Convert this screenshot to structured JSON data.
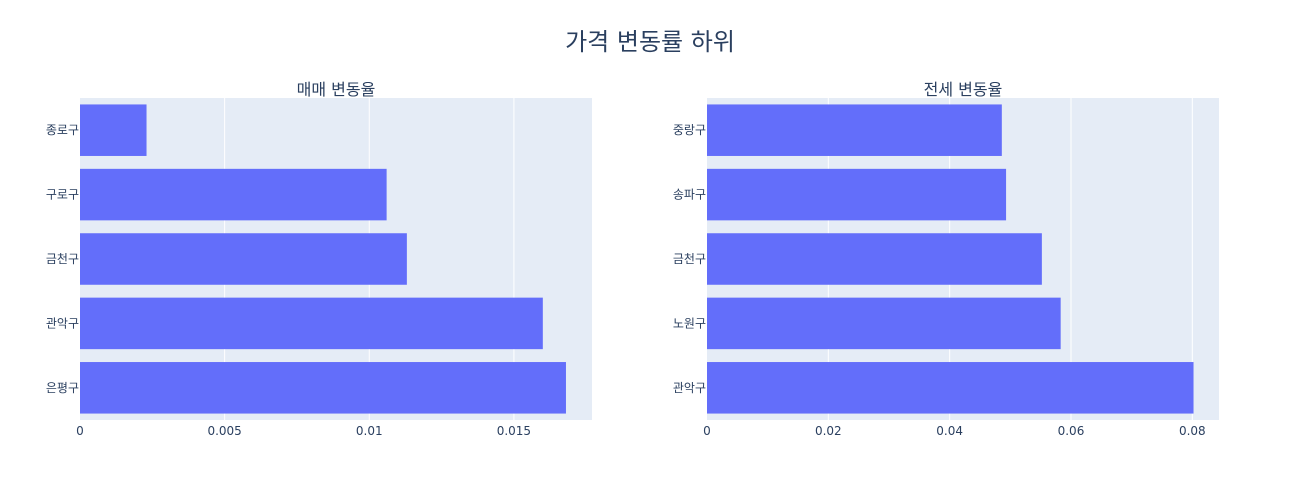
{
  "title": "가격 변동률 하위",
  "chart_data": [
    {
      "type": "bar",
      "orientation": "horizontal",
      "title": "매매 변동율",
      "xlabel": "",
      "ylabel": "",
      "categories": [
        "종로구",
        "구로구",
        "금천구",
        "관악구",
        "은평구"
      ],
      "values": [
        0.0023,
        0.0106,
        0.0113,
        0.016,
        0.0168
      ],
      "xlim": [
        0,
        0.0177
      ],
      "xticks": [
        0,
        0.005,
        0.01,
        0.015
      ],
      "xtick_labels": [
        "0",
        "0.005",
        "0.01",
        "0.015"
      ],
      "bar_color": "#636efa",
      "plot_bg": "#e5ecf6",
      "grid": true
    },
    {
      "type": "bar",
      "orientation": "horizontal",
      "title": "전세 변동율",
      "xlabel": "",
      "ylabel": "",
      "categories": [
        "중랑구",
        "송파구",
        "금천구",
        "노원구",
        "관악구"
      ],
      "values": [
        0.0486,
        0.0493,
        0.0552,
        0.0583,
        0.0802
      ],
      "xlim": [
        0,
        0.0844
      ],
      "xticks": [
        0,
        0.02,
        0.04,
        0.06,
        0.08
      ],
      "xtick_labels": [
        "0",
        "0.02",
        "0.04",
        "0.06",
        "0.08"
      ],
      "bar_color": "#636efa",
      "plot_bg": "#e5ecf6",
      "grid": true
    }
  ]
}
